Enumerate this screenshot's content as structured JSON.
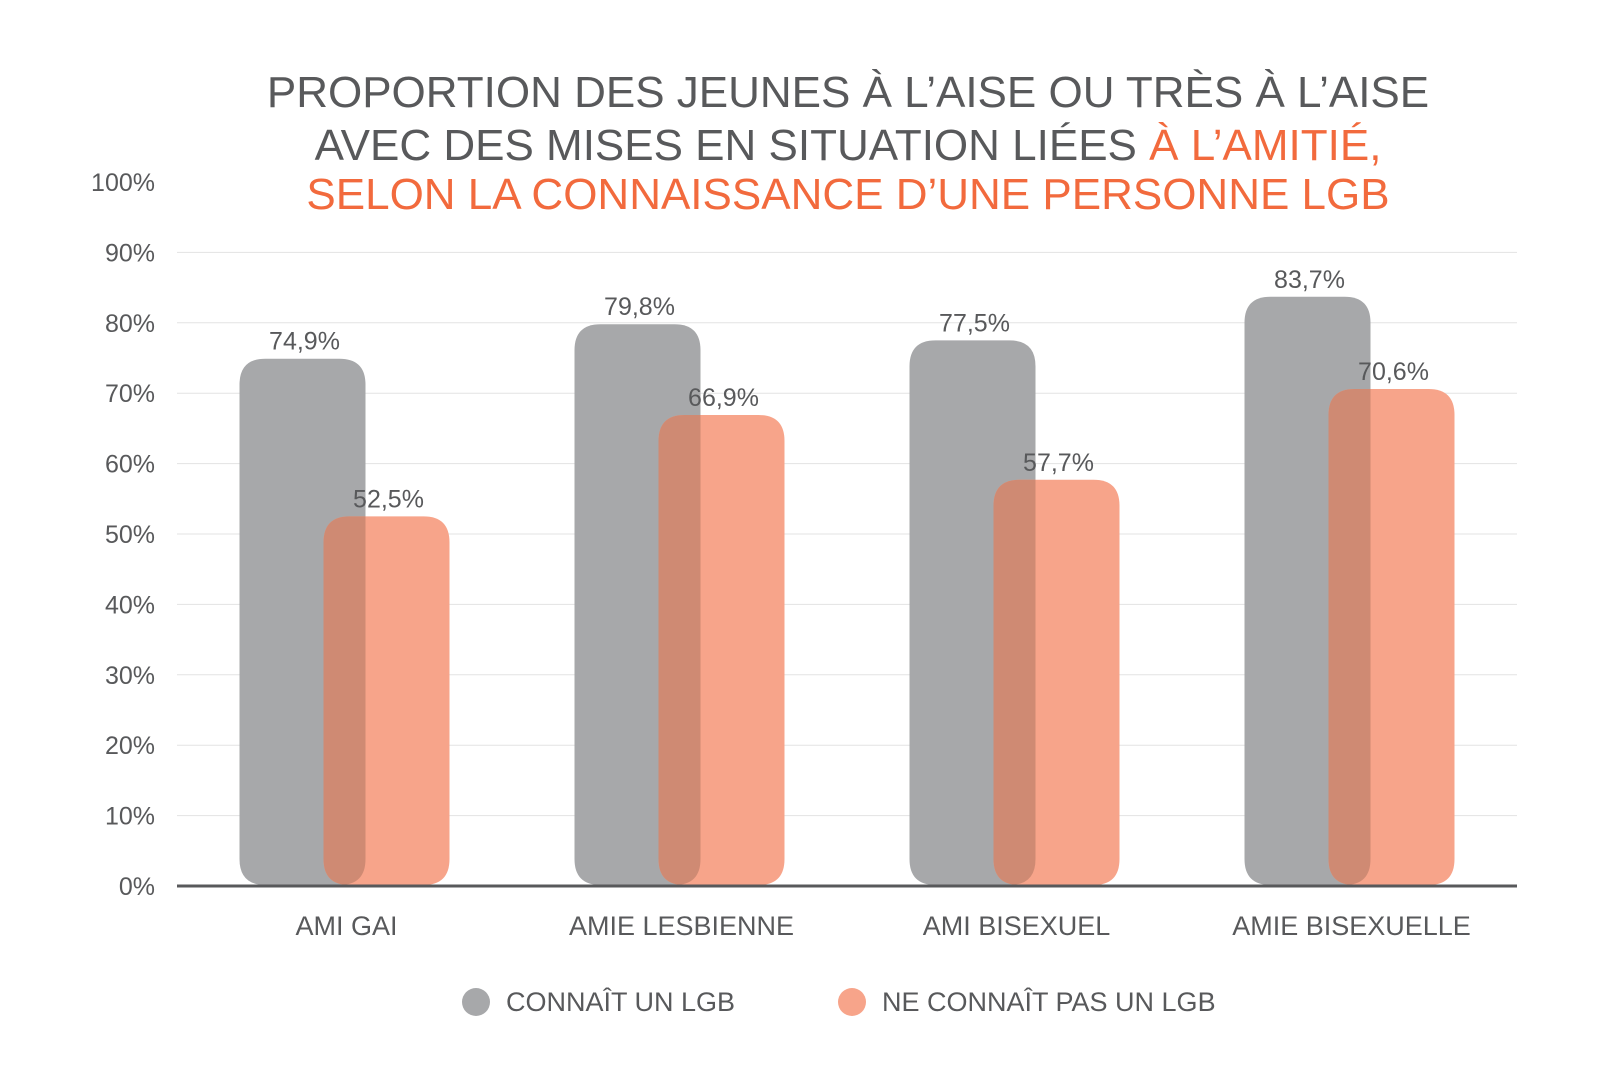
{
  "chart_data": {
    "type": "bar",
    "title": {
      "line1": "PROPORTION DES JEUNES À L’AISE OU TRÈS À L’AISE",
      "line2_plain": "AVEC DES MISES EN SITUATION LIÉES ",
      "line2_accent": "À L’AMITIÉ,",
      "line3_accent": "SELON LA CONNAISSANCE D’UNE PERSONNE LGB"
    },
    "categories": [
      "AMI GAI",
      "AMIE LESBIENNE",
      "AMI BISEXUEL",
      "AMIE BISEXUELLE"
    ],
    "series": [
      {
        "name": "CONNAÎT UN LGB",
        "color": "#a7a8aa",
        "values": [
          74.9,
          79.8,
          77.5,
          83.7
        ],
        "labels": [
          "74,9%",
          "79,8%",
          "77,5%",
          "83,7%"
        ]
      },
      {
        "name": "NE CONNAÎT PAS UN LGB",
        "color": "#f7a48a",
        "values": [
          52.5,
          66.9,
          57.7,
          70.6
        ],
        "labels": [
          "52,5%",
          "66,9%",
          "57,7%",
          "70,6%"
        ]
      }
    ],
    "overlap_color": "#cf8a73",
    "y_ticks": [
      "0%",
      "10%",
      "20%",
      "30%",
      "40%",
      "50%",
      "60%",
      "70%",
      "80%",
      "90%",
      "100%"
    ],
    "ylim": [
      0,
      100
    ],
    "xlabel": "",
    "ylabel": "",
    "grid": true,
    "legend_position": "bottom-center"
  }
}
